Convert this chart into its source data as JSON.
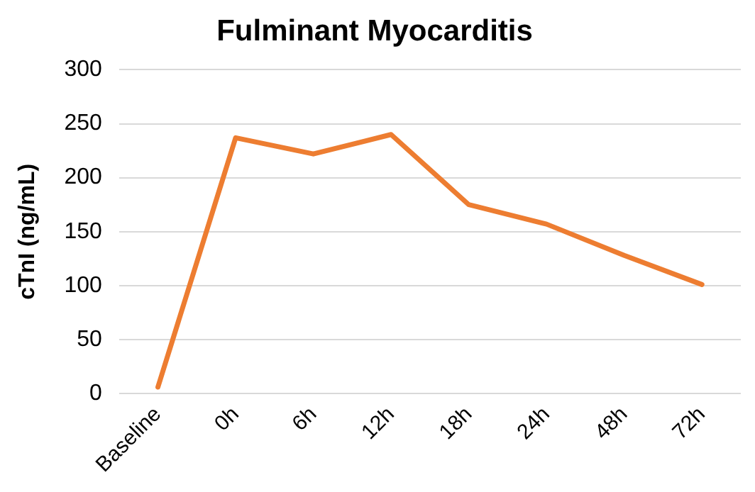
{
  "chart_data": {
    "type": "line",
    "title": "Fulminant Myocarditis",
    "ylabel": "cTnI (ng/mL)",
    "categories": [
      "Baseline",
      "0h",
      "6h",
      "12h",
      "18h",
      "24h",
      "48h",
      "72h"
    ],
    "series": [
      {
        "color": "#ed7d31",
        "values": [
          6,
          237,
          222,
          240,
          175,
          157,
          128,
          101
        ]
      }
    ],
    "ylim": [
      0,
      300
    ],
    "yticks": [
      0,
      50,
      100,
      150,
      200,
      250,
      300
    ],
    "grid": "y",
    "legend": false,
    "marker": "none",
    "line_style": "solid"
  }
}
